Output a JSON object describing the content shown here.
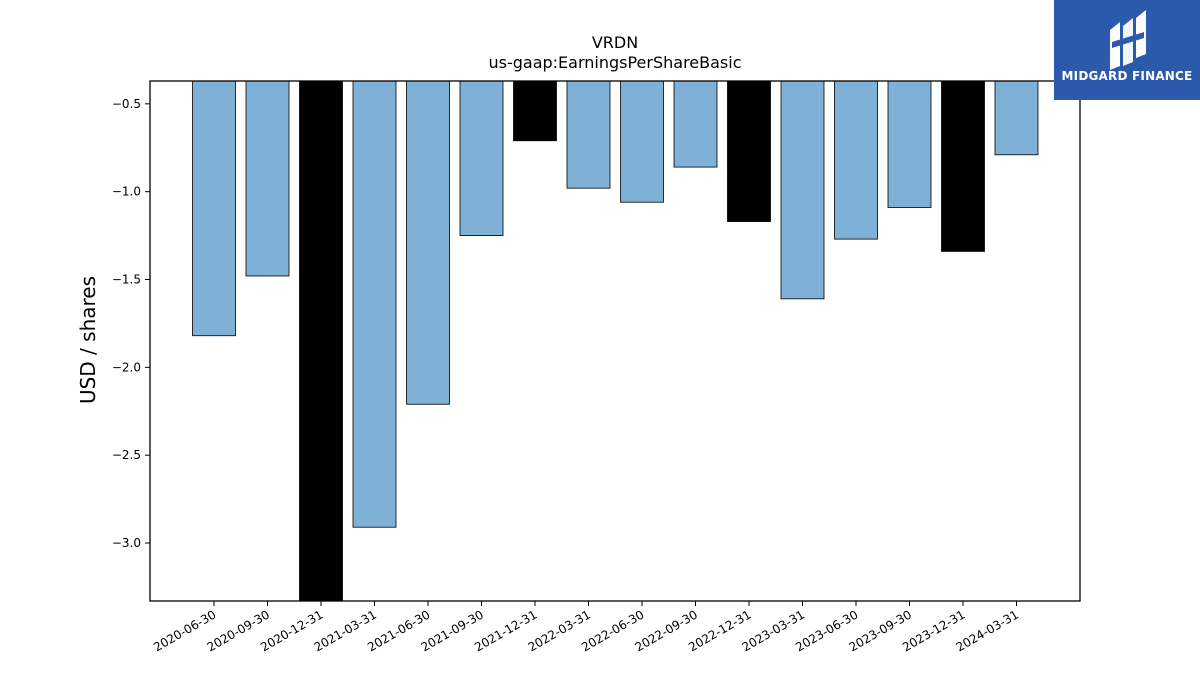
{
  "chart_data": {
    "type": "bar",
    "title": "VRDN",
    "subtitle": "us-gaap:EarningsPerShareBasic",
    "xlabel": "",
    "ylabel": "USD / shares",
    "ylim": [
      -3.33,
      -0.37
    ],
    "yticks": [
      -0.5,
      -1.0,
      -1.5,
      -2.0,
      -2.5,
      -3.0
    ],
    "ytick_labels": [
      "−0.5",
      "−1.0",
      "−1.5",
      "−2.0",
      "−2.5",
      "−3.0"
    ],
    "grid": false,
    "categories": [
      "2020-06-30",
      "2020-09-30",
      "2020-12-31",
      "2021-03-31",
      "2021-06-30",
      "2021-09-30",
      "2021-12-31",
      "2022-03-31",
      "2022-06-30",
      "2022-09-30",
      "2022-12-31",
      "2023-03-31",
      "2023-06-30",
      "2023-09-30",
      "2023-12-31",
      "2024-03-31"
    ],
    "values": [
      -1.82,
      -1.48,
      -3.33,
      -2.91,
      -2.21,
      -1.25,
      -0.71,
      -0.98,
      -1.06,
      -0.86,
      -1.17,
      -1.61,
      -1.27,
      -1.09,
      -1.34,
      -0.79
    ],
    "fiscal_year_end": [
      false,
      false,
      true,
      false,
      false,
      false,
      true,
      false,
      false,
      false,
      true,
      false,
      false,
      false,
      true,
      false
    ],
    "colors": {
      "quarter": "#7fb0d5",
      "year_end": "#000000",
      "edge": "#000000"
    }
  },
  "logo": {
    "text": "MIDGARD FINANCE",
    "background": "#2b5aab"
  }
}
